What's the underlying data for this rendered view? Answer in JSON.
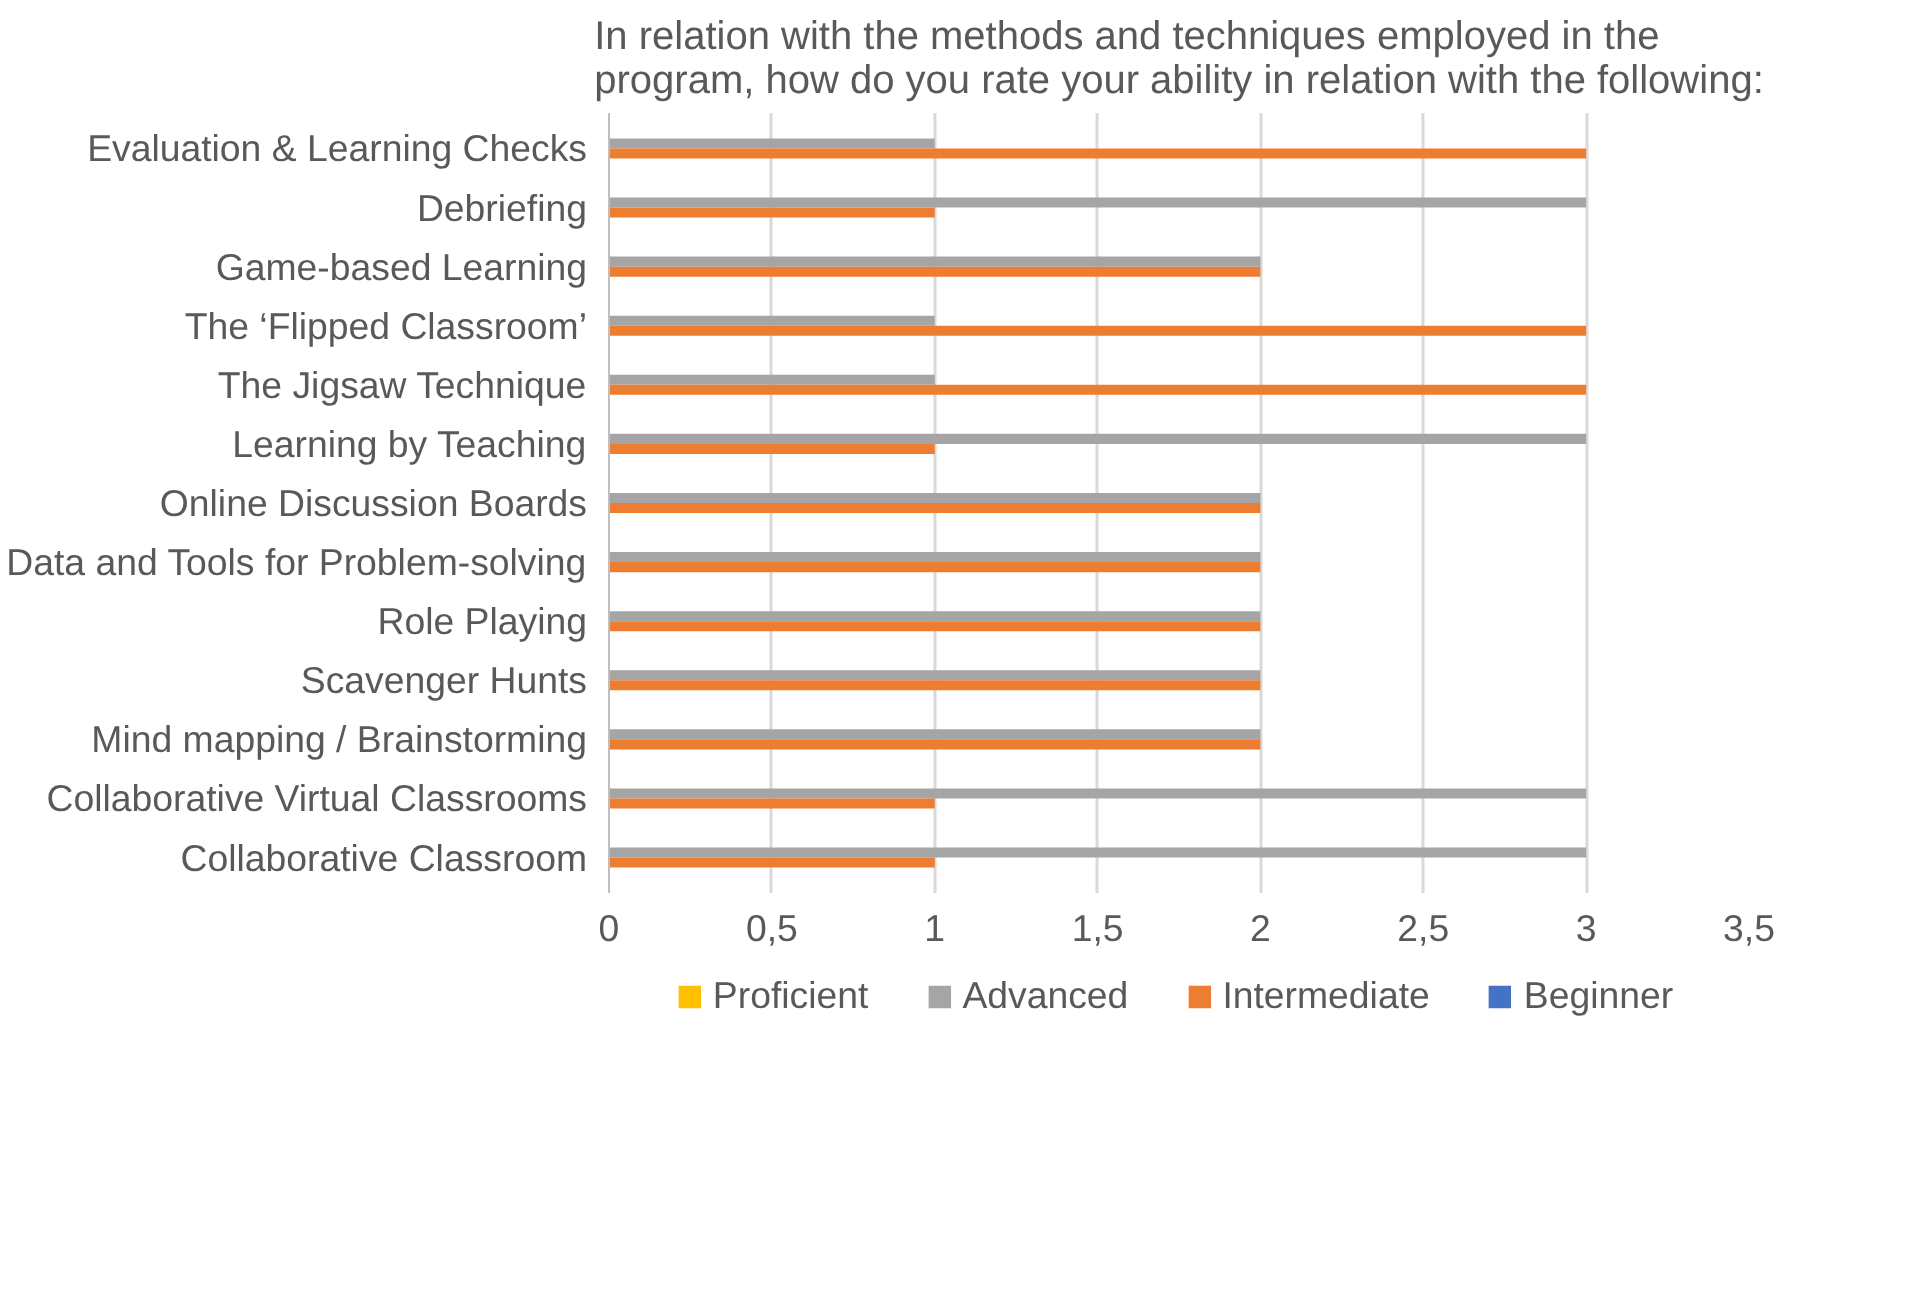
{
  "chart_data": {
    "type": "bar",
    "orientation": "horizontal",
    "title": "In relation with the methods and techniques employed in the program, how do you rate your ability in relation with the following:",
    "categories": [
      "Evaluation & Learning Checks",
      "Debriefing",
      "Game-based Learning",
      "The ‘Flipped Classroom’",
      "The Jigsaw Technique",
      "Learning by Teaching",
      "Online Discussion Boards",
      "Data and Tools for Problem-solving",
      "Role Playing",
      "Scavenger Hunts",
      "Mind mapping / Brainstorming",
      "Collaborative Virtual Classrooms",
      "Collaborative Classroom"
    ],
    "series": [
      {
        "name": "Proficient",
        "color": "#ffc000",
        "values": [
          0,
          0,
          0,
          0,
          0,
          0,
          0,
          0,
          0,
          0,
          0,
          0,
          0
        ]
      },
      {
        "name": "Advanced",
        "color": "#a5a5a5",
        "values": [
          1,
          3,
          2,
          1,
          1,
          3,
          2,
          2,
          2,
          2,
          2,
          3,
          3
        ]
      },
      {
        "name": "Intermediate",
        "color": "#ed7d31",
        "values": [
          3,
          1,
          2,
          3,
          3,
          1,
          2,
          2,
          2,
          2,
          2,
          1,
          1
        ]
      },
      {
        "name": "Beginner",
        "color": "#4472c4",
        "values": [
          0,
          0,
          0,
          0,
          0,
          0,
          0,
          0,
          0,
          0,
          0,
          0,
          0
        ]
      }
    ],
    "xlim": [
      0,
      3.5
    ],
    "xticks": [
      0,
      {
        "value": 0.5,
        "label": "0,5"
      },
      1,
      {
        "value": 1.5,
        "label": "1,5"
      },
      2,
      {
        "value": 2.5,
        "label": "2,5"
      },
      3,
      {
        "value": 3.5,
        "label": "3,5"
      }
    ],
    "grid": "x",
    "legend": "bottom"
  }
}
